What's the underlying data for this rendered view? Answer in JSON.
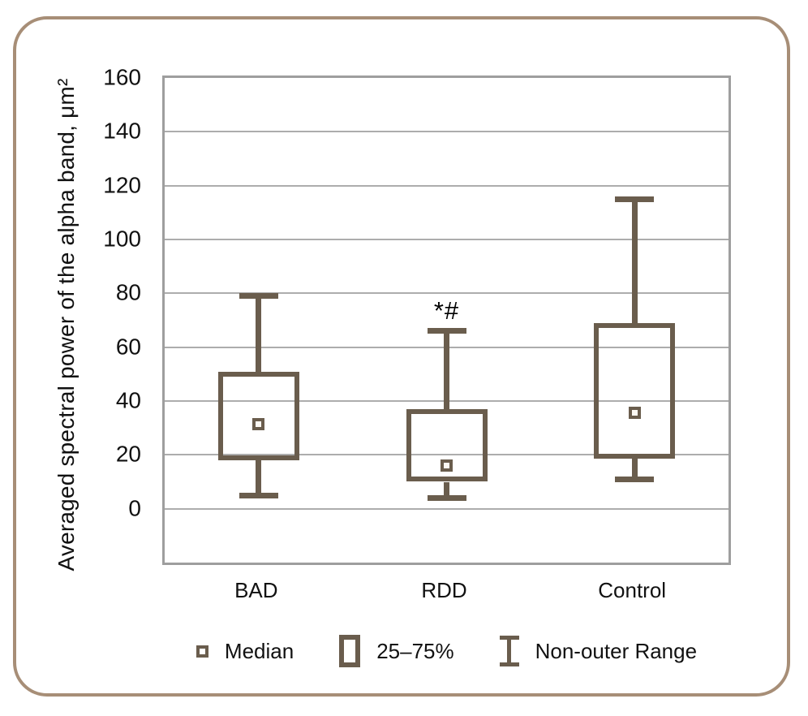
{
  "chart_data": {
    "type": "boxplot",
    "title": "",
    "xlabel": "",
    "ylabel": "Averaged spectral power of the alpha band, μm²",
    "ylim": [
      -20,
      160
    ],
    "yticks": [
      0,
      20,
      40,
      60,
      80,
      100,
      120,
      140,
      160
    ],
    "grid": "horizontal",
    "categories": [
      "BAD",
      "RDD",
      "Control"
    ],
    "series": [
      {
        "name": "BAD",
        "low": 5,
        "q1": 18,
        "median": 31.5,
        "q3": 51,
        "high": 79,
        "annotation": ""
      },
      {
        "name": "RDD",
        "low": 4,
        "q1": 10,
        "median": 16,
        "q3": 37,
        "high": 66,
        "annotation": "*#"
      },
      {
        "name": "Control",
        "low": 11,
        "q1": 18.5,
        "median": 35.5,
        "q3": 69,
        "high": 115,
        "annotation": ""
      }
    ],
    "legend": {
      "position": "bottom",
      "items": [
        {
          "symbol": "median-square",
          "label": "Median"
        },
        {
          "symbol": "iqr-box",
          "label": "25–75%"
        },
        {
          "symbol": "whisker-range",
          "label": "Non-outer Range"
        }
      ]
    },
    "colors": {
      "box": "#6a5d4d",
      "gridline": "#adadad",
      "plot_border": "#9e9e9e",
      "frame": "#a78e77",
      "text": "#111111"
    }
  }
}
